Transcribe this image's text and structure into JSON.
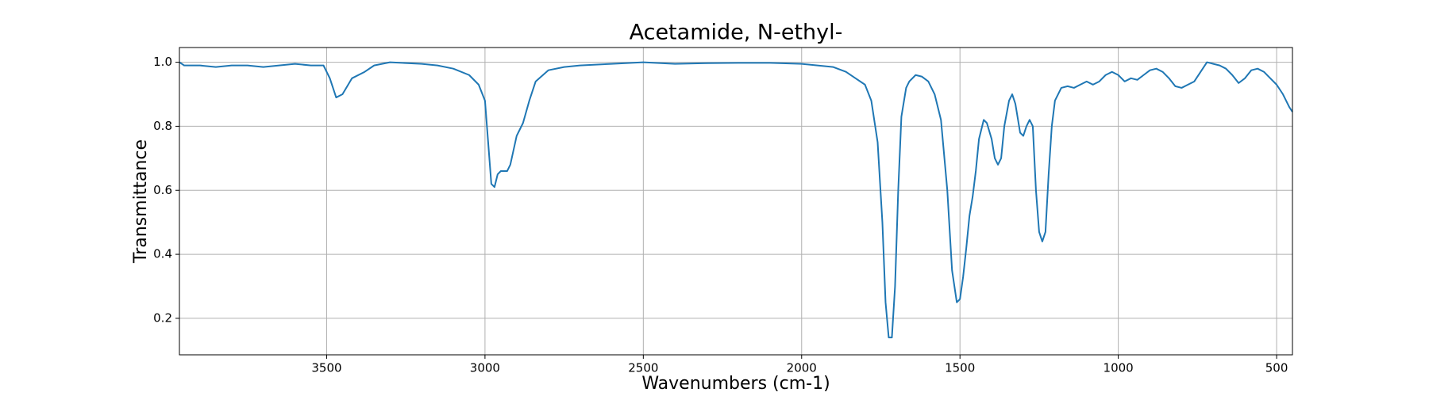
{
  "chart_data": {
    "type": "line",
    "title": "Acetamide, N-ethyl-",
    "x_label": "Wavenumbers (cm-1)",
    "y_label": "Transmittance",
    "color": "#1f77b4",
    "grid": true,
    "x_reversed": true,
    "xlim": [
      3965,
      450
    ],
    "ylim": [
      0.086,
      1.046
    ],
    "xticks": [
      3500,
      3000,
      2500,
      2000,
      1500,
      1000,
      500
    ],
    "yticks": [
      0.2,
      0.4,
      0.6,
      0.8,
      {
        "value": 1,
        "label": "1.0"
      }
    ],
    "x": [
      3965,
      3950,
      3900,
      3850,
      3800,
      3750,
      3700,
      3650,
      3600,
      3550,
      3510,
      3490,
      3470,
      3450,
      3420,
      3380,
      3350,
      3300,
      3200,
      3150,
      3100,
      3050,
      3020,
      3000,
      2990,
      2980,
      2970,
      2960,
      2950,
      2930,
      2920,
      2900,
      2880,
      2860,
      2840,
      2800,
      2750,
      2700,
      2600,
      2500,
      2400,
      2300,
      2200,
      2100,
      2000,
      1950,
      1900,
      1860,
      1830,
      1800,
      1780,
      1760,
      1745,
      1735,
      1725,
      1715,
      1705,
      1695,
      1685,
      1670,
      1660,
      1640,
      1620,
      1600,
      1580,
      1560,
      1540,
      1525,
      1510,
      1500,
      1490,
      1480,
      1470,
      1460,
      1450,
      1440,
      1425,
      1415,
      1400,
      1390,
      1380,
      1370,
      1360,
      1345,
      1335,
      1325,
      1310,
      1300,
      1290,
      1280,
      1270,
      1260,
      1250,
      1240,
      1230,
      1220,
      1210,
      1200,
      1180,
      1160,
      1140,
      1120,
      1100,
      1080,
      1060,
      1040,
      1020,
      1000,
      980,
      960,
      940,
      920,
      900,
      880,
      860,
      840,
      820,
      800,
      780,
      760,
      740,
      720,
      700,
      680,
      660,
      640,
      620,
      600,
      580,
      560,
      540,
      520,
      500,
      480,
      460,
      450
    ],
    "values": [
      1.0,
      0.99,
      0.99,
      0.985,
      0.99,
      0.99,
      0.985,
      0.99,
      0.995,
      0.99,
      0.99,
      0.95,
      0.89,
      0.9,
      0.95,
      0.97,
      0.99,
      1.0,
      0.995,
      0.99,
      0.98,
      0.96,
      0.93,
      0.88,
      0.75,
      0.62,
      0.61,
      0.65,
      0.66,
      0.66,
      0.68,
      0.77,
      0.81,
      0.88,
      0.94,
      0.975,
      0.985,
      0.99,
      0.995,
      1.0,
      0.995,
      0.997,
      0.998,
      0.998,
      0.995,
      0.99,
      0.985,
      0.97,
      0.95,
      0.93,
      0.88,
      0.75,
      0.5,
      0.25,
      0.14,
      0.14,
      0.3,
      0.6,
      0.83,
      0.92,
      0.94,
      0.96,
      0.955,
      0.94,
      0.9,
      0.82,
      0.6,
      0.35,
      0.25,
      0.26,
      0.33,
      0.42,
      0.52,
      0.58,
      0.66,
      0.76,
      0.82,
      0.81,
      0.76,
      0.7,
      0.68,
      0.7,
      0.8,
      0.88,
      0.9,
      0.87,
      0.78,
      0.77,
      0.8,
      0.82,
      0.8,
      0.6,
      0.47,
      0.44,
      0.47,
      0.65,
      0.8,
      0.88,
      0.92,
      0.925,
      0.92,
      0.93,
      0.94,
      0.93,
      0.94,
      0.96,
      0.97,
      0.96,
      0.94,
      0.95,
      0.945,
      0.96,
      0.975,
      0.98,
      0.97,
      0.95,
      0.925,
      0.92,
      0.93,
      0.94,
      0.97,
      1.0,
      0.995,
      0.99,
      0.98,
      0.96,
      0.935,
      0.95,
      0.975,
      0.98,
      0.97,
      0.95,
      0.93,
      0.9,
      0.86,
      0.845
    ]
  }
}
